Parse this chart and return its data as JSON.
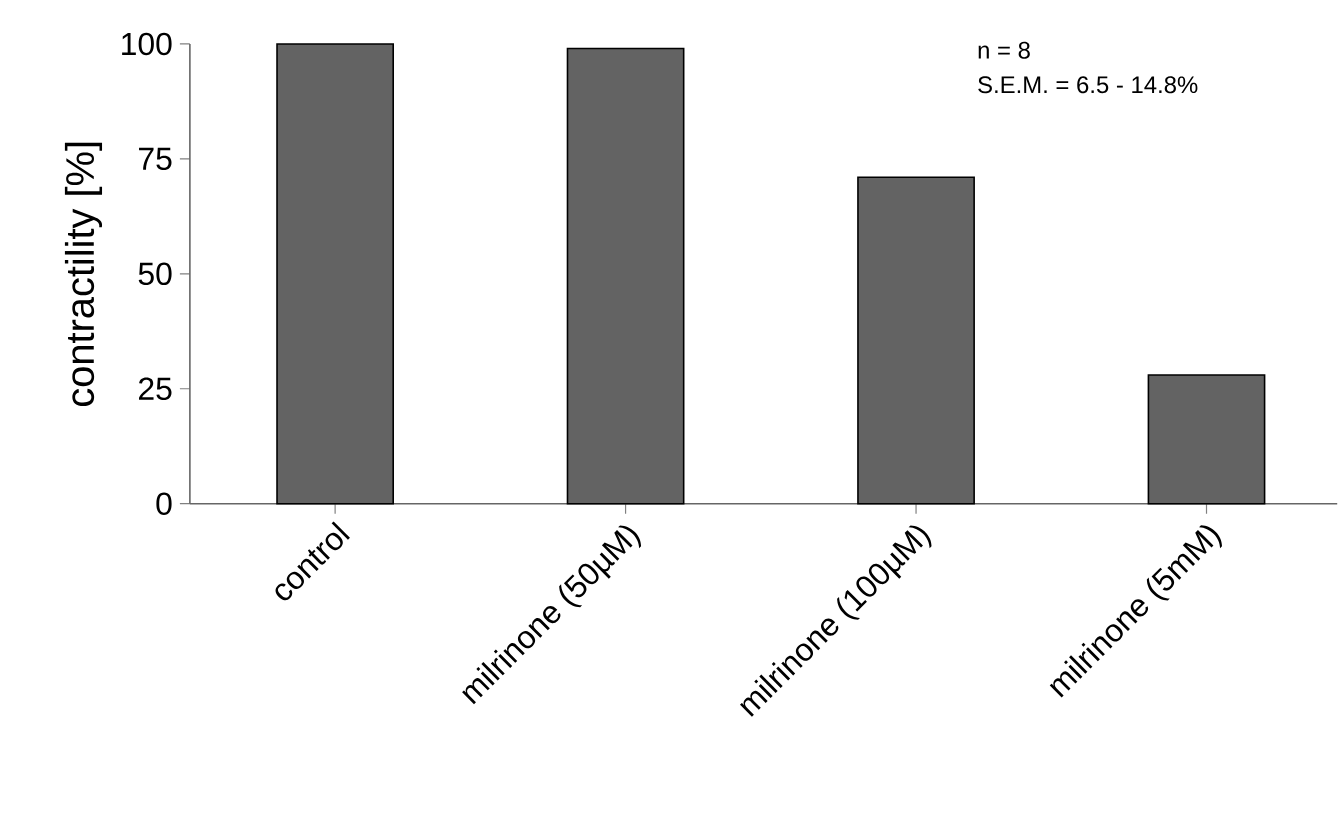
{
  "chart_data": {
    "type": "bar",
    "ylabel": "contractility [%]",
    "categories": [
      "control",
      "milrinone (50µM)",
      "milrinone (100µM)",
      "milrinone (5mM)"
    ],
    "values": [
      100,
      99,
      71,
      28
    ],
    "color": "#636363",
    "ylim": [
      0,
      100
    ],
    "yticks": [
      0,
      25,
      50,
      75,
      100
    ],
    "annotations": [
      "n = 8",
      "S.E.M. = 6.5 - 14.8%"
    ]
  }
}
